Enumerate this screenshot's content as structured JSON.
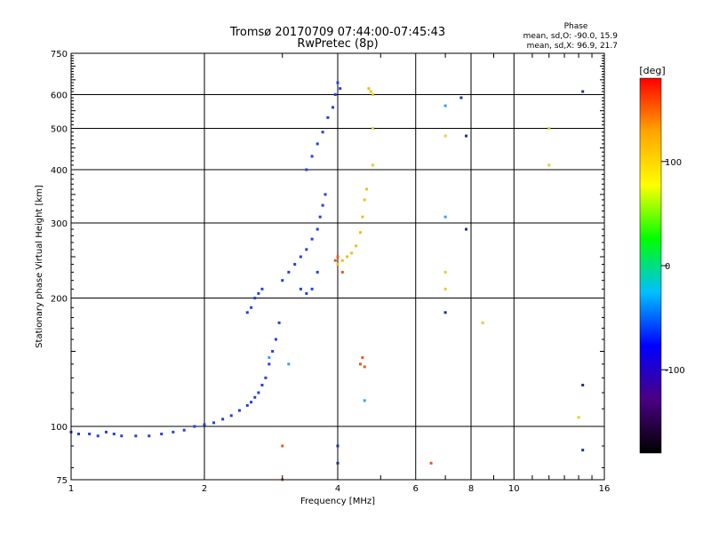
{
  "chart_data": {
    "type": "scatter",
    "title": "Tromsø 20170709 07:44:00-07:45:43",
    "subtitle": "RwPretec (8p)",
    "xlabel": "Frequency [MHz]",
    "ylabel": "Stationary phase Virtual Height [km]",
    "xscale": "log2",
    "yscale": "log",
    "xlim": [
      1,
      16
    ],
    "ylim": [
      75,
      750
    ],
    "x_ticks": [
      1,
      2,
      4,
      6,
      8,
      10,
      16
    ],
    "y_ticks": [
      75,
      100,
      200,
      300,
      400,
      500,
      600,
      750
    ],
    "grid": true,
    "phase_stats": {
      "title": "Phase",
      "line1": "mean, sd,O: -90.0, 15.9",
      "line2": "mean, sd,X:  96.9, 21.7"
    },
    "colorbar": {
      "label": "[deg]",
      "range": [
        -180,
        180
      ],
      "ticks": [
        100,
        0,
        -100
      ],
      "colors": [
        "#000000",
        "#4b0082",
        "#0000ff",
        "#00bfff",
        "#00ff00",
        "#ffff00",
        "#ffa500",
        "#ff0000"
      ]
    },
    "series": [
      {
        "color": "#2040e0",
        "points": [
          [
            1.0,
            97
          ],
          [
            1.04,
            96
          ],
          [
            1.1,
            96
          ],
          [
            1.15,
            95
          ],
          [
            1.2,
            97
          ],
          [
            1.25,
            96
          ],
          [
            1.3,
            95
          ],
          [
            1.4,
            95
          ],
          [
            1.5,
            95
          ],
          [
            1.6,
            96
          ],
          [
            1.7,
            97
          ],
          [
            1.8,
            98
          ],
          [
            1.9,
            100
          ],
          [
            2.0,
            101
          ],
          [
            2.1,
            102
          ],
          [
            2.2,
            104
          ],
          [
            2.3,
            106
          ],
          [
            2.4,
            109
          ],
          [
            2.5,
            112
          ],
          [
            2.55,
            114
          ],
          [
            2.6,
            117
          ],
          [
            2.65,
            120
          ],
          [
            2.7,
            125
          ],
          [
            2.75,
            130
          ],
          [
            2.8,
            140
          ],
          [
            2.85,
            150
          ],
          [
            2.9,
            160
          ],
          [
            2.95,
            175
          ],
          [
            2.5,
            185
          ],
          [
            2.55,
            190
          ],
          [
            2.6,
            200
          ],
          [
            2.65,
            205
          ],
          [
            2.7,
            210
          ],
          [
            3.0,
            220
          ],
          [
            3.1,
            230
          ],
          [
            3.2,
            240
          ],
          [
            3.3,
            250
          ],
          [
            3.4,
            260
          ],
          [
            3.5,
            275
          ],
          [
            3.6,
            290
          ],
          [
            3.65,
            310
          ],
          [
            3.7,
            330
          ],
          [
            3.75,
            350
          ],
          [
            3.4,
            400
          ],
          [
            3.5,
            430
          ],
          [
            3.6,
            460
          ],
          [
            3.7,
            490
          ],
          [
            3.8,
            530
          ],
          [
            3.9,
            560
          ],
          [
            3.95,
            600
          ],
          [
            4.0,
            640
          ],
          [
            4.05,
            620
          ],
          [
            3.3,
            210
          ],
          [
            3.4,
            205
          ],
          [
            3.5,
            210
          ],
          [
            3.6,
            230
          ]
        ]
      },
      {
        "color": "#e8c020",
        "points": [
          [
            4.0,
            240
          ],
          [
            4.1,
            245
          ],
          [
            4.2,
            250
          ],
          [
            4.3,
            255
          ],
          [
            4.4,
            265
          ],
          [
            4.5,
            285
          ],
          [
            4.55,
            310
          ],
          [
            4.6,
            340
          ],
          [
            4.65,
            360
          ],
          [
            4.7,
            620
          ],
          [
            4.75,
            610
          ],
          [
            4.8,
            600
          ]
        ]
      },
      {
        "color": "#e06020",
        "points": [
          [
            4.0,
            250
          ],
          [
            3.95,
            245
          ],
          [
            4.1,
            230
          ],
          [
            3.0,
            90
          ],
          [
            4.5,
            140
          ],
          [
            4.6,
            138
          ],
          [
            4.55,
            145
          ],
          [
            3.0,
            75
          ],
          [
            6.5,
            82
          ]
        ]
      },
      {
        "color": "#30a0ff",
        "points": [
          [
            2.8,
            145
          ],
          [
            3.1,
            140
          ],
          [
            4.6,
            115
          ],
          [
            7.0,
            565
          ],
          [
            7.0,
            310
          ]
        ]
      },
      {
        "color": "#203090",
        "points": [
          [
            4.0,
            82
          ],
          [
            4.0,
            90
          ],
          [
            7.0,
            185
          ],
          [
            7.8,
            290
          ],
          [
            7.8,
            480
          ],
          [
            14.3,
            610
          ],
          [
            14.3,
            88
          ],
          [
            14.3,
            125
          ],
          [
            7.6,
            590
          ]
        ]
      },
      {
        "color": "#e0d030",
        "points": [
          [
            7.0,
            230
          ],
          [
            7.0,
            210
          ],
          [
            7.0,
            480
          ],
          [
            8.5,
            175
          ],
          [
            12.0,
            500
          ],
          [
            12.0,
            410
          ],
          [
            14.0,
            105
          ],
          [
            4.8,
            500
          ],
          [
            4.8,
            410
          ]
        ]
      }
    ]
  }
}
